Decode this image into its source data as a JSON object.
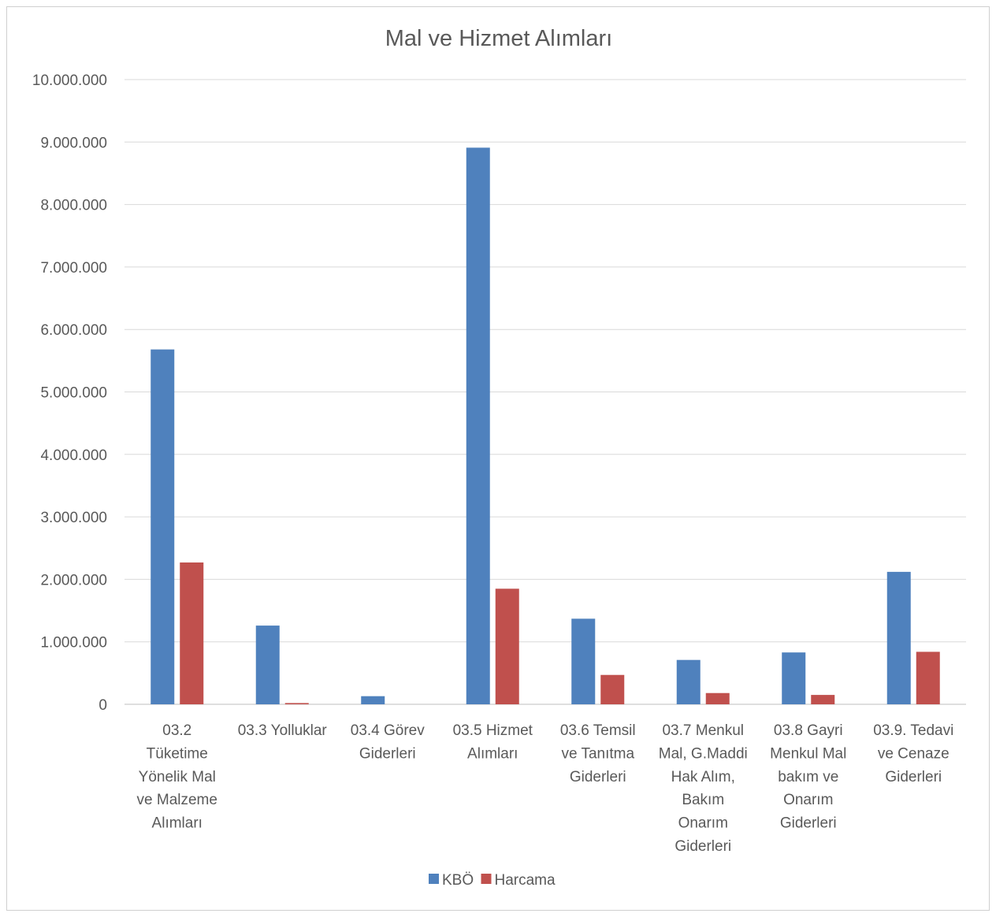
{
  "chart_data": {
    "type": "bar",
    "title": "Mal ve Hizmet Alımları",
    "categories": [
      [
        "03.2",
        "Tüketime",
        "Yönelik Mal",
        "ve Malzeme",
        "Alımları"
      ],
      [
        "03.3 Yolluklar"
      ],
      [
        "03.4 Görev",
        "Giderleri"
      ],
      [
        "03.5 Hizmet",
        "Alımları"
      ],
      [
        "03.6 Temsil",
        "ve Tanıtma",
        "Giderleri"
      ],
      [
        "03.7 Menkul",
        "Mal, G.Maddi",
        "Hak Alım,",
        "Bakım",
        "Onarım",
        "Giderleri"
      ],
      [
        "03.8 Gayri",
        "Menkul Mal",
        "bakım ve",
        "Onarım",
        "Giderleri"
      ],
      [
        "03.9. Tedavi",
        "ve Cenaze",
        "Giderleri"
      ]
    ],
    "series": [
      {
        "name": "KBÖ",
        "color": "#4f81bd",
        "values": [
          5680000,
          1260000,
          130000,
          8910000,
          1370000,
          710000,
          830000,
          2120000
        ]
      },
      {
        "name": "Harcama",
        "color": "#c0504d",
        "values": [
          2270000,
          20000,
          0,
          1850000,
          470000,
          180000,
          150000,
          840000
        ]
      }
    ],
    "ylim": [
      0,
      10000000
    ],
    "yticks": [
      "0",
      "1.000.000",
      "2.000.000",
      "3.000.000",
      "4.000.000",
      "5.000.000",
      "6.000.000",
      "7.000.000",
      "8.000.000",
      "9.000.000",
      "10.000.000"
    ],
    "grid": true,
    "legend_position": "bottom"
  }
}
